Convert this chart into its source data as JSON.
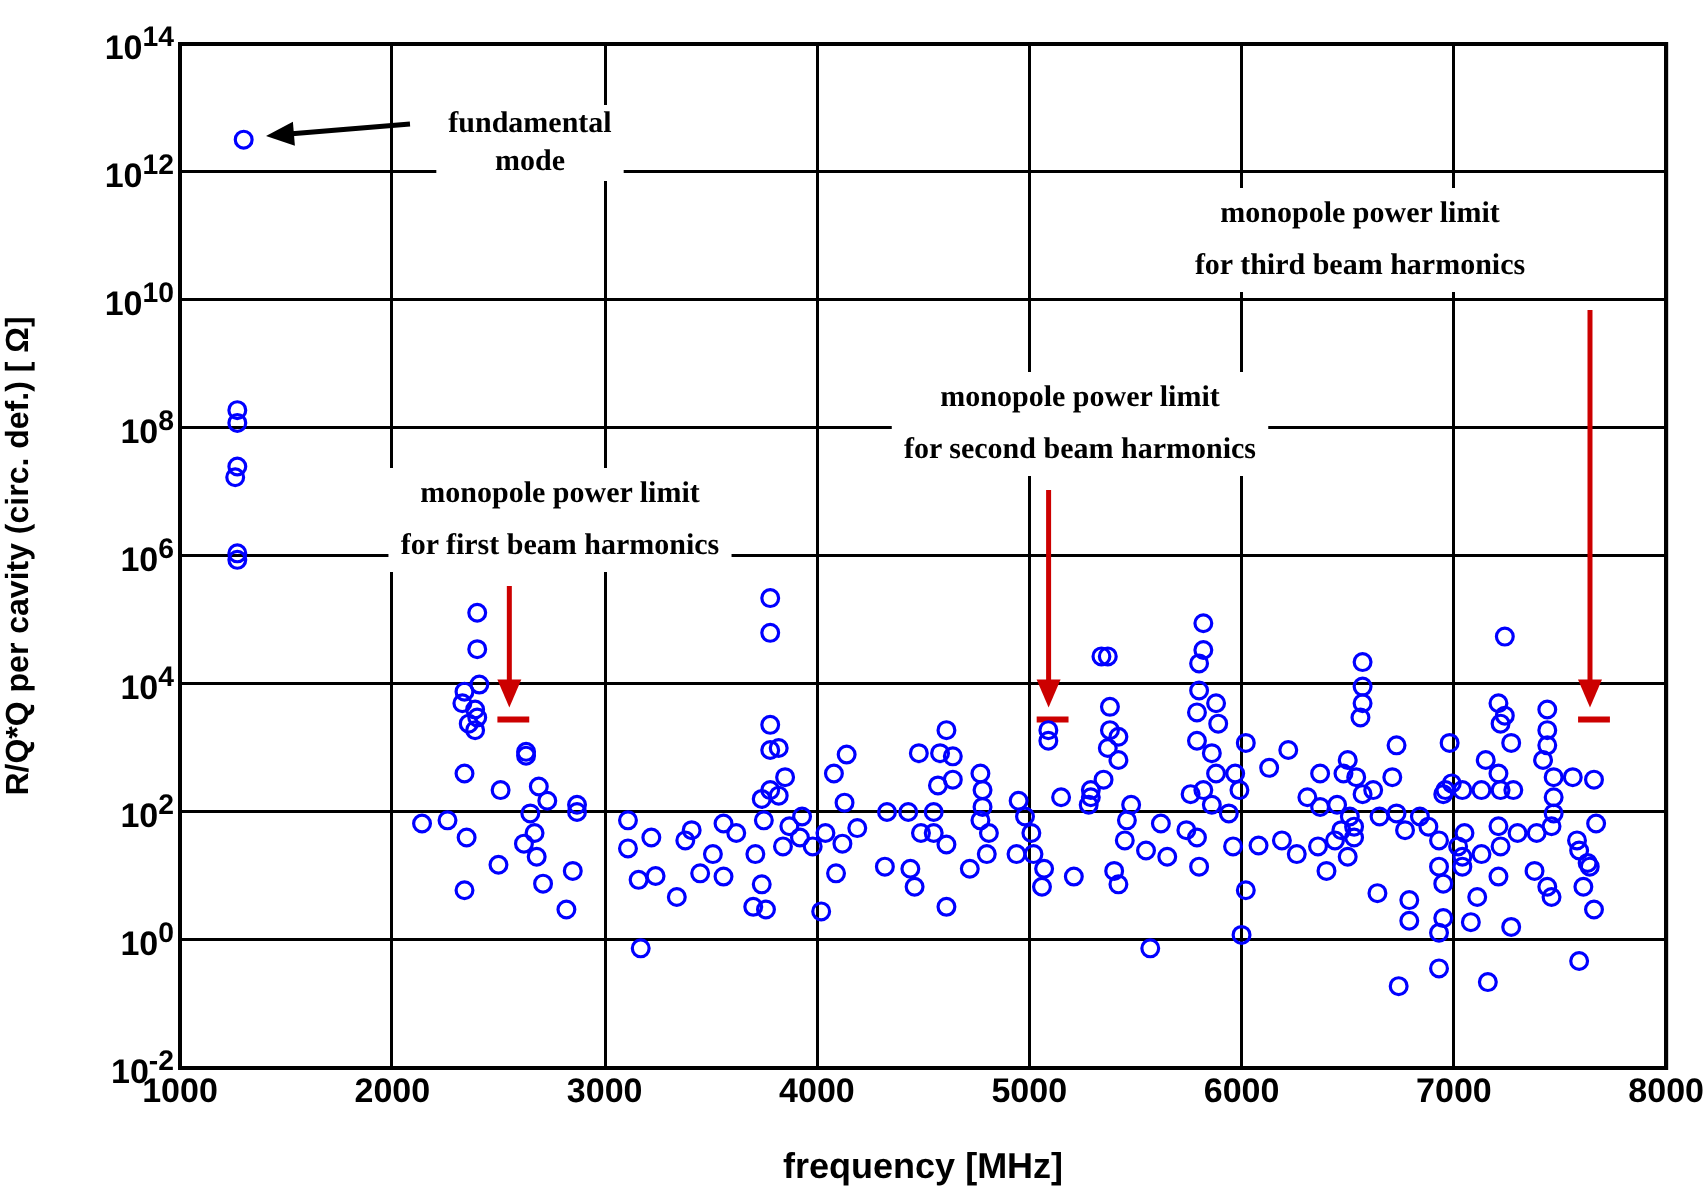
{
  "chart_data": {
    "type": "scatter",
    "xlabel": "frequency [MHz]",
    "ylabel": "R/Q*Q per cavity (circ. def.) [ Ω]",
    "xlim": [
      1000,
      8000
    ],
    "xticks": [
      1000,
      2000,
      3000,
      4000,
      5000,
      6000,
      7000,
      8000
    ],
    "ylim": [
      0.01,
      100000000000000
    ],
    "yticks": [
      {
        "value": 0.01,
        "label": "10$^{-2}$"
      },
      {
        "value": 1,
        "label": "10$^{0}$"
      },
      {
        "value": 100,
        "label": "10$^{2}$"
      },
      {
        "value": 10000,
        "label": "10$^{4}$"
      },
      {
        "value": 1000000,
        "label": "10$^{6}$"
      },
      {
        "value": 100000000,
        "label": "10$^{8}$"
      },
      {
        "value": 10000000000,
        "label": "10$^{10}$"
      },
      {
        "value": 1000000000000,
        "label": "10$^{12}$"
      },
      {
        "value": 100000000000000,
        "label": "10$^{14}$"
      }
    ],
    "log": "y",
    "grid": true,
    "legend": false,
    "marker": "circle",
    "series": [
      {
        "color": "#0000ff",
        "x": [
          1300,
          1270,
          1270,
          1270,
          1260,
          1270,
          1270,
          2400,
          2400,
          2410,
          2340,
          2330,
          2390,
          2400,
          2390,
          2360,
          2630,
          2630,
          2340,
          2510,
          2690,
          2730,
          2650,
          2670,
          2680,
          2710,
          2620,
          2870,
          2870,
          2850,
          2820,
          2140,
          2260,
          2350,
          2500,
          2340,
          3110,
          3110,
          3220,
          3160,
          3240,
          3340,
          3170,
          3380,
          3780,
          3780,
          3780,
          3780,
          3820,
          3850,
          3780,
          3820,
          3750,
          3740,
          3870,
          3840,
          3930,
          3920,
          4040,
          4120,
          4190,
          4130,
          4080,
          4140,
          3980,
          4090,
          4020,
          3740,
          3700,
          3760,
          3560,
          3620,
          3510,
          3450,
          3560,
          3410,
          3710,
          4330,
          4430,
          4550,
          4480,
          4580,
          4610,
          4640,
          4640,
          4570,
          4490,
          4550,
          4610,
          4320,
          4440,
          4460,
          4720,
          4610,
          4800,
          4770,
          4780,
          4780,
          4770,
          4810,
          4950,
          4980,
          5010,
          4940,
          5020,
          5070,
          5060,
          5210,
          5150,
          5090,
          5090,
          5340,
          5290,
          5820,
          5820,
          5800,
          5370,
          5380,
          5380,
          5420,
          5370,
          5420,
          5350,
          5290,
          5280,
          5480,
          5460,
          5620,
          5450,
          5550,
          5650,
          5400,
          5420,
          5570,
          5790,
          5800,
          5740,
          5800,
          5790,
          5880,
          5890,
          5790,
          5860,
          5880,
          5820,
          5760,
          5860,
          5940,
          5970,
          6020,
          6220,
          6130,
          5990,
          5960,
          6080,
          6190,
          6260,
          6360,
          6020,
          6000,
          6570,
          6570,
          6570,
          6560,
          6730,
          6370,
          6500,
          6480,
          6540,
          6310,
          6370,
          6450,
          6570,
          6620,
          6710,
          6510,
          6470,
          6530,
          6530,
          6440,
          6500,
          6400,
          6650,
          6730,
          6770,
          6840,
          6880,
          6640,
          6790,
          6790,
          6740,
          6930,
          6930,
          6950,
          6950,
          6930,
          6930,
          7020,
          7040,
          7040,
          7110,
          7080,
          7160,
          7210,
          7050,
          7130,
          7210,
          7220,
          7270,
          7380,
          7440,
          7460,
          7300,
          7390,
          7460,
          6980,
          6960,
          6990,
          6950,
          7040,
          7130,
          7150,
          7210,
          7240,
          7220,
          7270,
          7210,
          7220,
          7280,
          7240,
          7440,
          7440,
          7440,
          7420,
          7470,
          7560,
          7660,
          7470,
          7470,
          7670,
          7580,
          7590,
          7630,
          7640,
          7610,
          7660,
          7590
        ],
        "values": [
          3200000000000,
          190000000,
          120000000,
          25000000,
          17000000,
          1100000,
          870000,
          130000,
          35000,
          9800,
          7600,
          5000,
          4000,
          3000,
          1900,
          2400,
          870,
          760,
          400,
          220,
          250,
          150,
          95,
          47,
          20,
          7.6,
          32,
          130,
          100,
          12,
          3,
          66,
          74,
          40,
          15,
          6,
          74,
          27,
          40,
          8.7,
          10,
          4.7,
          0.74,
          36,
          220000,
          63000,
          2300,
          930,
          1000,
          350,
          220,
          180,
          74,
          160,
          60,
          29,
          85,
          40,
          47,
          32,
          56,
          140,
          400,
          790,
          29,
          11,
          2.8,
          7.4,
          3.3,
          3,
          66,
          47,
          22,
          11,
          9.8,
          52,
          22,
          100,
          100,
          100,
          830,
          830,
          1900,
          740,
          320,
          260,
          47,
          47,
          31,
          14,
          13,
          6.8,
          13,
          3.3,
          22,
          400,
          220,
          120,
          74,
          47,
          150,
          85,
          47,
          22,
          22,
          13,
          6.8,
          9.8,
          170,
          1300,
          1900,
          27000,
          170,
          89000,
          34000,
          21000,
          27000,
          4400,
          1900,
          1500,
          1000,
          650,
          320,
          220,
          130,
          130,
          74,
          66,
          36,
          25,
          20,
          12,
          7.4,
          0.74,
          40,
          14,
          52,
          7900,
          3600,
          5000,
          2400,
          1300,
          830,
          400,
          220,
          190,
          130,
          95,
          400,
          1200,
          930,
          490,
          220,
          29,
          30,
          36,
          22,
          29,
          6,
          1.2,
          22000,
          9100,
          5000,
          3000,
          1100,
          400,
          650,
          400,
          350,
          170,
          120,
          130,
          190,
          220,
          350,
          85,
          52,
          59,
          40,
          36,
          20,
          12,
          85,
          95,
          52,
          85,
          59,
          5.4,
          4.2,
          2,
          0.19,
          36,
          14,
          7.6,
          2.2,
          1.3,
          0.36,
          29,
          20,
          14,
          4.7,
          1.9,
          0.22,
          9.8,
          47,
          22,
          60,
          29,
          1.6,
          12,
          6.8,
          4.7,
          47,
          47,
          60,
          1200,
          220,
          280,
          190,
          220,
          220,
          650,
          5000,
          3200,
          2400,
          1200,
          400,
          220,
          220,
          55000,
          4000,
          1900,
          1100,
          650,
          350,
          350,
          320,
          170,
          95,
          66,
          36,
          25,
          16,
          14,
          6.8,
          3,
          0.47
        ]
      },
      {
        "type": "line",
        "marker": "none",
        "color": "#cc0000",
        "x": [
          2495,
          2645,
          2650,
          5035,
          5185,
          5190,
          7585,
          7735
        ],
        "values": [
          2800,
          2800,
          null,
          2800,
          2800,
          null,
          2800,
          2800
        ]
      }
    ],
    "annotations": [
      "fundamental\nmode",
      "monopole power limit\nfor first beam harmonics",
      "monopole power limit\nfor second beam harmonics",
      "monopole power limit\nfor third beam harmonics"
    ]
  }
}
